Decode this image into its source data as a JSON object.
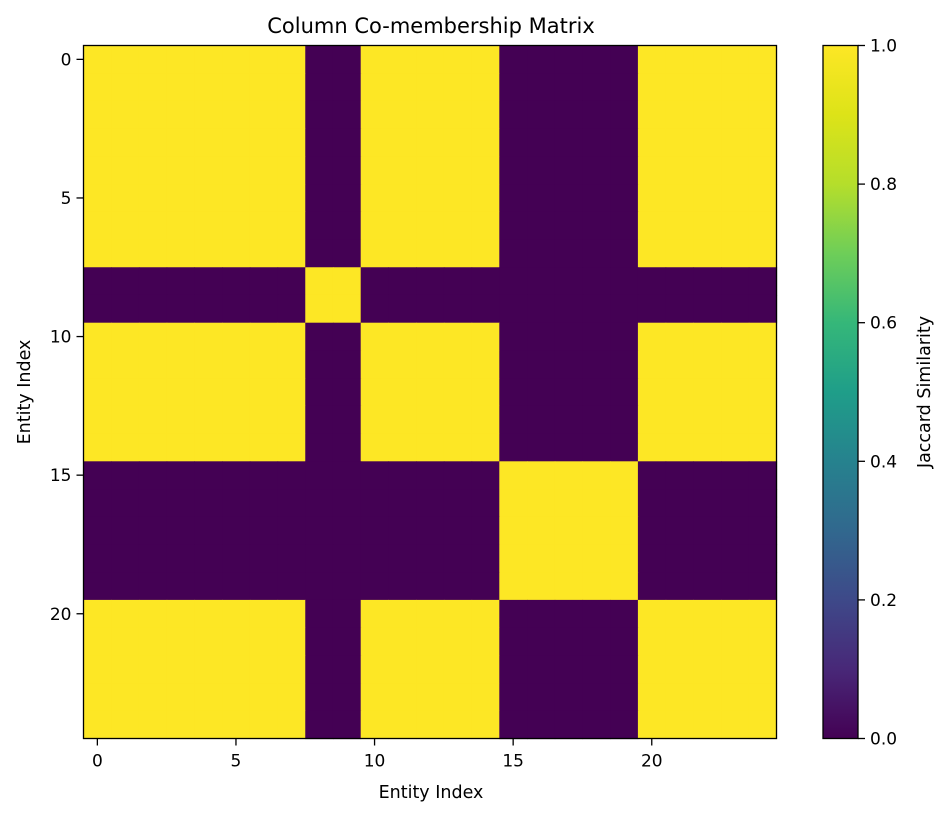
{
  "chart_data": {
    "type": "heatmap",
    "title": "Column Co-membership Matrix",
    "xlabel": "Entity Index",
    "ylabel": "Entity Index",
    "xlim": [
      -0.5,
      24.5
    ],
    "ylim": [
      24.5,
      -0.5
    ],
    "x_ticks": [
      0,
      5,
      10,
      15,
      20
    ],
    "y_ticks": [
      0,
      5,
      10,
      15,
      20
    ],
    "n_entities": 25,
    "entity_groups": [
      0,
      0,
      0,
      0,
      0,
      0,
      0,
      0,
      1,
      1,
      2,
      2,
      2,
      2,
      2,
      3,
      3,
      3,
      3,
      3,
      4,
      4,
      4,
      4,
      4
    ],
    "similar_group_sets": [
      [
        0,
        2,
        4
      ],
      [
        1
      ],
      [
        3
      ]
    ],
    "colorbar": {
      "label": "Jaccard Similarity",
      "colormap": "viridis",
      "min": 0.0,
      "max": 1.0,
      "ticks": [
        "0.0",
        "0.2",
        "0.4",
        "0.6",
        "0.8",
        "1.0"
      ]
    },
    "colors": {
      "low": "#440154",
      "high": "#fde725"
    },
    "grid": false
  }
}
